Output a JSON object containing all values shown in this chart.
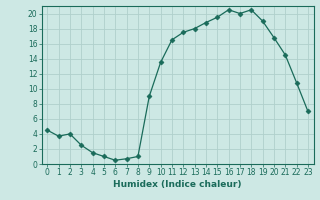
{
  "x": [
    0,
    1,
    2,
    3,
    4,
    5,
    6,
    7,
    8,
    9,
    10,
    11,
    12,
    13,
    14,
    15,
    16,
    17,
    18,
    19,
    20,
    21,
    22,
    23
  ],
  "y": [
    4.5,
    3.7,
    4.0,
    2.5,
    1.5,
    1.0,
    0.5,
    0.7,
    1.0,
    9.0,
    13.5,
    16.5,
    17.5,
    18.0,
    18.8,
    19.5,
    20.5,
    20.0,
    20.5,
    19.0,
    16.8,
    14.5,
    10.8,
    7.0
  ],
  "line_color": "#1a6b5a",
  "marker": "D",
  "marker_size": 2.5,
  "bg_color": "#cde8e4",
  "grid_color": "#b0d0cc",
  "axis_color": "#1a6b5a",
  "xlabel": "Humidex (Indice chaleur)",
  "ylim": [
    0,
    21
  ],
  "xlim": [
    -0.5,
    23.5
  ],
  "yticks": [
    0,
    2,
    4,
    6,
    8,
    10,
    12,
    14,
    16,
    18,
    20
  ],
  "xticks": [
    0,
    1,
    2,
    3,
    4,
    5,
    6,
    7,
    8,
    9,
    10,
    11,
    12,
    13,
    14,
    15,
    16,
    17,
    18,
    19,
    20,
    21,
    22,
    23
  ],
  "label_fontsize": 6.5,
  "tick_fontsize": 5.5
}
